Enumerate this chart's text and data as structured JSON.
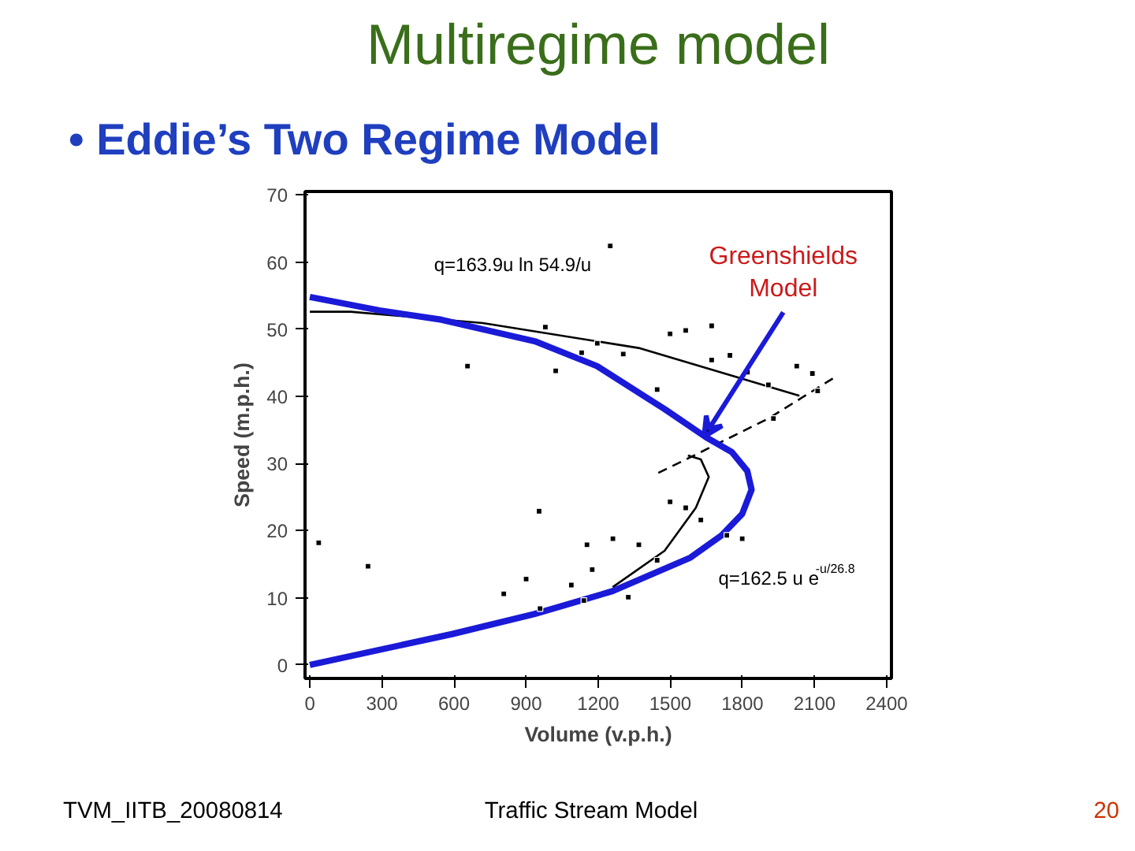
{
  "chart_data": {
    "type": "scatter",
    "title": "Multiregime model",
    "subtitle": "• Eddie’s Two Regime Model",
    "xlabel": "Volume (v.p.h.)",
    "ylabel": "Speed (m.p.h.)",
    "xlim": [
      -20,
      2420
    ],
    "ylim": [
      -2,
      70.5
    ],
    "xticks": [
      0,
      300,
      600,
      900,
      1200,
      1500,
      1800,
      2100,
      2400
    ],
    "yticks": [
      0,
      10,
      20,
      30,
      40,
      50,
      60,
      70
    ],
    "grid": false,
    "series": [
      {
        "color": "#000000",
        "marker": "square",
        "x": [
          1250,
          656,
          37,
          242,
          900,
          954,
          958,
          1023,
          980,
          1131,
          1196,
          1304,
          1445,
          1499,
          1564,
          1672,
          1672,
          1748,
          1821,
          1908,
          2026,
          2091,
          2113,
          1929,
          1499,
          1564,
          1627,
          1735,
          1799,
          1445,
          1369,
          1261,
          1175,
          1088,
          1140,
          1325,
          1153,
          807
        ],
        "values": [
          62.4,
          44.5,
          18.2,
          14.7,
          12.8,
          22.9,
          8.4,
          43.8,
          50.3,
          46.5,
          47.9,
          46.3,
          41,
          49.3,
          49.8,
          50.5,
          45.4,
          46.1,
          43.6,
          41.7,
          44.5,
          43.4,
          40.8,
          36.7,
          24.3,
          23.4,
          21.6,
          19.3,
          18.8,
          15.6,
          17.9,
          18.8,
          14.2,
          11.9,
          9.6,
          10.1,
          17.9,
          10.6
        ]
      },
      {
        "type": "line",
        "color": "#000000",
        "line_style": "solid",
        "x": [
          0,
          170,
          720,
          1368,
          2037
        ],
        "values": [
          52.6,
          52.6,
          50.9,
          47.2,
          40.1
        ]
      },
      {
        "type": "line",
        "color": "#000000",
        "line_style": "solid",
        "x": [
          1260,
          1476,
          1606,
          1660,
          1627,
          1573
        ],
        "values": [
          11.6,
          17,
          23.4,
          28,
          30.6,
          31.2
        ]
      },
      {
        "type": "line",
        "color": "#000000",
        "line_style": "dashed",
        "x": [
          1450,
          1627,
          1908,
          2178
        ],
        "values": [
          28.6,
          31.7,
          36.7,
          42.7
        ]
      },
      {
        "type": "line",
        "color": "#1a1ad8",
        "line_style": "solid",
        "x": [
          0,
          591,
          936,
          1260,
          1584,
          1713,
          1799,
          1838,
          1820,
          1756,
          1649,
          1476,
          1195,
          936,
          548,
          289,
          0
        ],
        "values": [
          0,
          4.6,
          7.6,
          11,
          16,
          19.3,
          22.5,
          26.1,
          28.9,
          31.7,
          33.9,
          38.1,
          44.5,
          48.2,
          51.4,
          52.8,
          54.8
        ]
      }
    ],
    "annotations": [
      {
        "text": "Greenshields Model",
        "x": 1640,
        "y": 34
      },
      "q=163.9u ln 54.9/u",
      "q=162.5 u e$^{-u/26.8}$",
      "TVM_IITB_20080814",
      "Traffic Stream Model",
      "20"
    ]
  }
}
